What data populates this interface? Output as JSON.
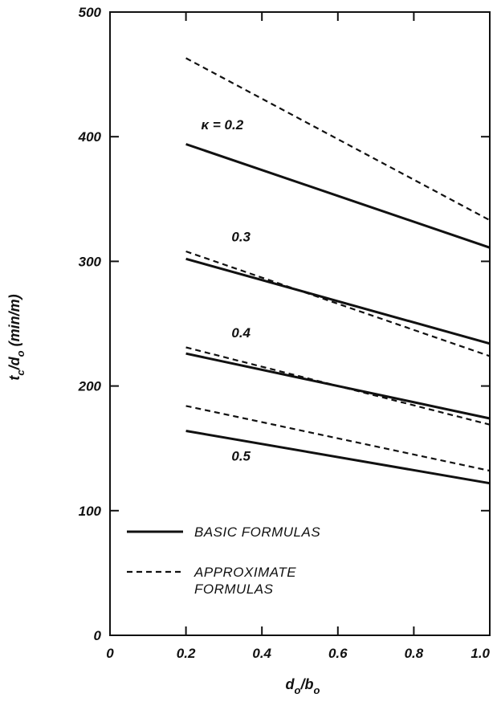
{
  "chart_data": {
    "type": "line",
    "xlabel": {
      "main": "d",
      "sub1": "o",
      "slash": "/b",
      "sub2": "o"
    },
    "ylabel": {
      "main": "t",
      "sub1": "c",
      "slash": "/d",
      "sub2": "o",
      "unit": " (min/m)"
    },
    "xlim": [
      0,
      1.0
    ],
    "ylim": [
      0,
      500
    ],
    "x_ticks": [
      {
        "value": 0,
        "label": "0"
      },
      {
        "value": 0.2,
        "label": "0.2"
      },
      {
        "value": 0.4,
        "label": "0.4"
      },
      {
        "value": 0.6,
        "label": "0.6"
      },
      {
        "value": 0.8,
        "label": "0.8"
      },
      {
        "value": 1.0,
        "label": "1.0"
      }
    ],
    "y_ticks": [
      {
        "value": 0,
        "label": "0"
      },
      {
        "value": 100,
        "label": "100"
      },
      {
        "value": 200,
        "label": "200"
      },
      {
        "value": 300,
        "label": "300"
      },
      {
        "value": 400,
        "label": "400"
      },
      {
        "value": 500,
        "label": "500"
      }
    ],
    "series": [
      {
        "group": "basic",
        "kappa": "0.2",
        "style": "solid",
        "x": [
          0.2,
          1.0
        ],
        "y": [
          394,
          311
        ]
      },
      {
        "group": "approximate",
        "kappa": "0.2",
        "style": "dashed",
        "x": [
          0.2,
          1.0
        ],
        "y": [
          463,
          333
        ]
      },
      {
        "group": "basic",
        "kappa": "0.3",
        "style": "solid",
        "x": [
          0.2,
          1.0
        ],
        "y": [
          302,
          234
        ]
      },
      {
        "group": "approximate",
        "kappa": "0.3",
        "style": "dashed",
        "x": [
          0.2,
          1.0
        ],
        "y": [
          308,
          224
        ]
      },
      {
        "group": "basic",
        "kappa": "0.4",
        "style": "solid",
        "x": [
          0.2,
          1.0
        ],
        "y": [
          226,
          174
        ]
      },
      {
        "group": "approximate",
        "kappa": "0.4",
        "style": "dashed",
        "x": [
          0.2,
          1.0
        ],
        "y": [
          231,
          169
        ]
      },
      {
        "group": "basic",
        "kappa": "0.5",
        "style": "solid",
        "x": [
          0.2,
          1.0
        ],
        "y": [
          164,
          122
        ]
      },
      {
        "group": "approximate",
        "kappa": "0.5",
        "style": "dashed",
        "x": [
          0.2,
          1.0
        ],
        "y": [
          184,
          132
        ]
      }
    ],
    "annotations": [
      {
        "text": "κ = 0.2",
        "x": 0.24,
        "y": 406
      },
      {
        "text": "0.3",
        "x": 0.32,
        "y": 316
      },
      {
        "text": "0.4",
        "x": 0.32,
        "y": 239
      },
      {
        "text": "0.5",
        "x": 0.32,
        "y": 140
      }
    ],
    "legend": {
      "position": "lower-left",
      "entries": [
        {
          "style": "solid",
          "lines": [
            "BASIC FORMULAS"
          ]
        },
        {
          "style": "dashed",
          "lines": [
            "APPROXIMATE",
            "FORMULAS"
          ]
        }
      ]
    },
    "grid": false
  }
}
